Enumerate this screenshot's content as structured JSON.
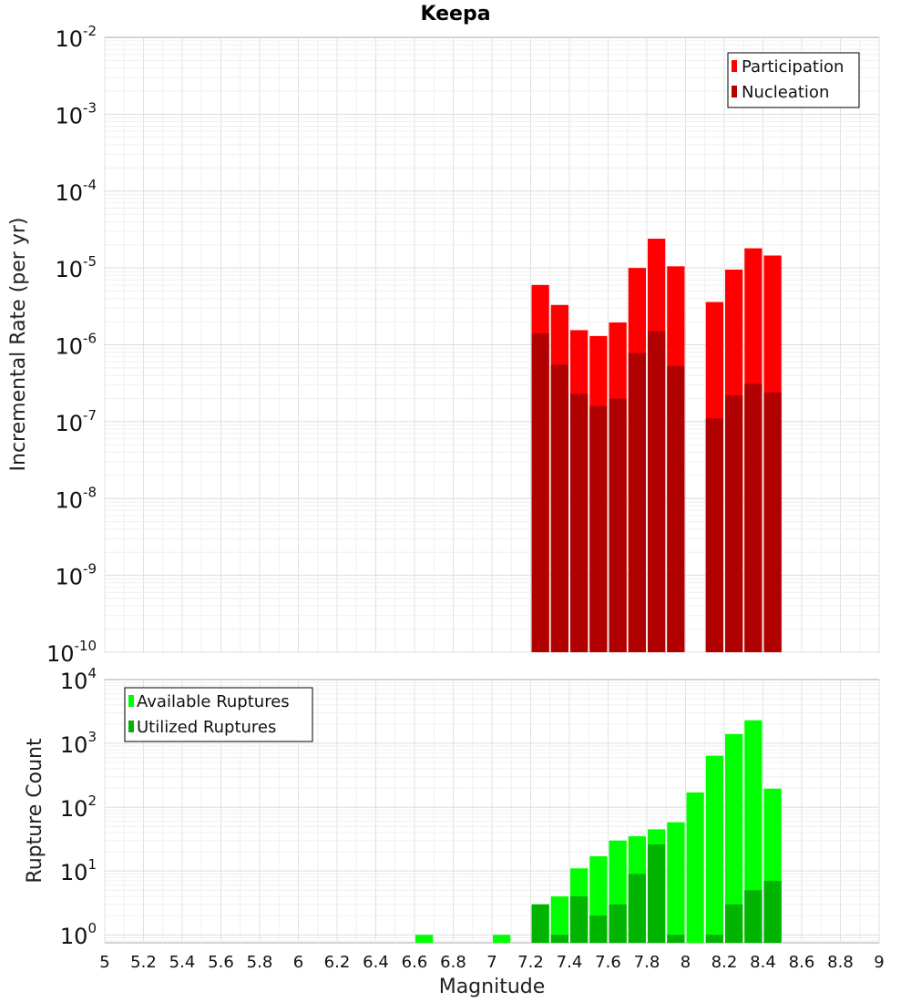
{
  "title": "Keepa",
  "xlabel": "Magnitude",
  "x_tick_labels": [
    "5",
    "5.2",
    "5.4",
    "5.6",
    "5.8",
    "6",
    "6.2",
    "6.4",
    "6.6",
    "6.8",
    "7",
    "7.2",
    "7.4",
    "7.6",
    "7.8",
    "8",
    "8.2",
    "8.4",
    "8.6",
    "8.8",
    "9"
  ],
  "chart_data": [
    {
      "type": "bar",
      "ylabel": "Incremental Rate (per yr)",
      "xlim": [
        5,
        9
      ],
      "ylim": [
        1e-10,
        0.01
      ],
      "yscale": "log",
      "y_tick_labels": [
        {
          "base": "10",
          "exp": "-10"
        },
        {
          "base": "10",
          "exp": "-9"
        },
        {
          "base": "10",
          "exp": "-8"
        },
        {
          "base": "10",
          "exp": "-7"
        },
        {
          "base": "10",
          "exp": "-6"
        },
        {
          "base": "10",
          "exp": "-5"
        },
        {
          "base": "10",
          "exp": "-4"
        },
        {
          "base": "10",
          "exp": "-3"
        },
        {
          "base": "10",
          "exp": "-2"
        }
      ],
      "bar_width": 0.1,
      "grid": true,
      "legend_position": "top-right",
      "x": [
        7.25,
        7.35,
        7.45,
        7.55,
        7.65,
        7.75,
        7.85,
        7.95,
        8.15,
        8.25,
        8.35,
        8.45
      ],
      "series": [
        {
          "name": "Participation",
          "color": "#ff0000",
          "values": [
            6e-06,
            3.3e-06,
            1.55e-06,
            1.3e-06,
            1.95e-06,
            1e-05,
            2.4e-05,
            1.05e-05,
            3.6e-06,
            9.5e-06,
            1.8e-05,
            1.45e-05
          ]
        },
        {
          "name": "Nucleation",
          "color": "#b00000",
          "values": [
            1.4e-06,
            5.5e-07,
            2.3e-07,
            1.6e-07,
            2e-07,
            7.8e-07,
            1.5e-06,
            5.3e-07,
            1.1e-07,
            2.2e-07,
            3.1e-07,
            2.4e-07
          ]
        }
      ]
    },
    {
      "type": "bar",
      "ylabel": "Rupture Count",
      "xlim": [
        5,
        9
      ],
      "ylim": [
        0.75,
        10000
      ],
      "yscale": "log",
      "y_tick_labels": [
        {
          "base": "10",
          "exp": "0"
        },
        {
          "base": "10",
          "exp": "1"
        },
        {
          "base": "10",
          "exp": "2"
        },
        {
          "base": "10",
          "exp": "3"
        },
        {
          "base": "10",
          "exp": "4"
        }
      ],
      "bar_width": 0.1,
      "grid": true,
      "legend_position": "top-left",
      "series": [
        {
          "name": "Available Ruptures",
          "color": "#00ff00",
          "x": [
            6.65,
            7.05,
            7.25,
            7.35,
            7.45,
            7.55,
            7.65,
            7.75,
            7.85,
            7.95,
            8.05,
            8.15,
            8.25,
            8.35,
            8.45
          ],
          "values": [
            1,
            1,
            3,
            4,
            11,
            17,
            30,
            35,
            45,
            58,
            170,
            640,
            1400,
            2300,
            195
          ]
        },
        {
          "name": "Utilized Ruptures",
          "color": "#00b400",
          "x": [
            7.25,
            7.35,
            7.45,
            7.55,
            7.65,
            7.75,
            7.85,
            7.95,
            8.15,
            8.25,
            8.35,
            8.45
          ],
          "values": [
            3,
            1,
            4,
            2,
            3,
            9,
            26,
            1,
            1,
            3,
            5,
            7
          ]
        }
      ]
    }
  ]
}
